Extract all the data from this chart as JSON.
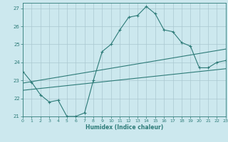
{
  "xlabel": "Humidex (Indice chaleur)",
  "ylabel": "",
  "xlim": [
    0,
    23
  ],
  "ylim": [
    21.0,
    27.3
  ],
  "yticks": [
    21,
    22,
    23,
    24,
    25,
    26,
    27
  ],
  "xticks": [
    0,
    1,
    2,
    3,
    4,
    5,
    6,
    7,
    8,
    9,
    10,
    11,
    12,
    13,
    14,
    15,
    16,
    17,
    18,
    19,
    20,
    21,
    22,
    23
  ],
  "bg_color": "#cce8ee",
  "grid_color": "#aac8d0",
  "line_color": "#2d7b78",
  "line1_x": [
    0,
    1,
    2,
    3,
    4,
    5,
    6,
    7,
    8,
    9,
    10,
    11,
    12,
    13,
    14,
    15,
    16,
    17,
    18,
    19,
    20,
    21,
    22,
    23
  ],
  "line1_y": [
    23.5,
    22.9,
    22.2,
    21.8,
    21.9,
    21.0,
    21.0,
    21.2,
    23.0,
    24.6,
    25.0,
    25.8,
    26.5,
    26.6,
    27.1,
    26.7,
    25.8,
    25.7,
    25.1,
    24.9,
    23.7,
    23.7,
    24.0,
    24.1
  ],
  "line2_slope": 0.082,
  "line2_intercept": 22.85,
  "line3_slope": 0.052,
  "line3_intercept": 22.45
}
